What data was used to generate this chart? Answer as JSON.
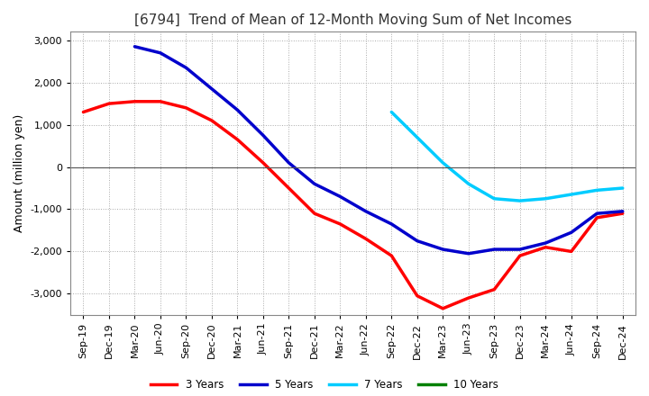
{
  "title": "[6794]  Trend of Mean of 12-Month Moving Sum of Net Incomes",
  "ylabel": "Amount (million yen)",
  "ylim": [
    -3500,
    3200
  ],
  "yticks": [
    -3000,
    -2000,
    -1000,
    0,
    1000,
    2000,
    3000
  ],
  "background_color": "#ffffff",
  "plot_bg_color": "#ffffff",
  "grid_color": "#aaaaaa",
  "legend_labels": [
    "3 Years",
    "5 Years",
    "7 Years",
    "10 Years"
  ],
  "legend_colors": [
    "#ff0000",
    "#0000cc",
    "#00ccff",
    "#008000"
  ],
  "x_labels": [
    "Sep-19",
    "Dec-19",
    "Mar-20",
    "Jun-20",
    "Sep-20",
    "Dec-20",
    "Mar-21",
    "Jun-21",
    "Sep-21",
    "Dec-21",
    "Mar-22",
    "Jun-22",
    "Sep-22",
    "Dec-22",
    "Mar-23",
    "Jun-23",
    "Sep-23",
    "Dec-23",
    "Mar-24",
    "Jun-24",
    "Sep-24",
    "Dec-24"
  ],
  "series_3y": [
    1300,
    1500,
    1550,
    1550,
    1400,
    1100,
    650,
    100,
    -500,
    -1100,
    -1350,
    -1700,
    -2100,
    -3050,
    -3350,
    -3100,
    -2900,
    -2100,
    -1900,
    -2000,
    -1200,
    -1100
  ],
  "series_5y": [
    null,
    null,
    2850,
    2700,
    2350,
    1850,
    1350,
    750,
    100,
    -400,
    -700,
    -1050,
    -1350,
    -1750,
    -1950,
    -2050,
    -1950,
    -1950,
    -1800,
    -1550,
    -1100,
    -1050
  ],
  "series_7y": [
    null,
    null,
    null,
    null,
    null,
    null,
    null,
    null,
    null,
    null,
    null,
    null,
    1300,
    700,
    100,
    -400,
    -750,
    -800,
    -750,
    -650,
    -550,
    -500
  ],
  "series_10y": [
    null,
    null,
    null,
    null,
    null,
    null,
    null,
    null,
    null,
    null,
    null,
    null,
    null,
    null,
    null,
    null,
    null,
    null,
    null,
    null,
    null,
    null
  ],
  "line_width": 2.5,
  "title_fontsize": 11,
  "tick_fontsize": 8,
  "ylabel_fontsize": 9
}
